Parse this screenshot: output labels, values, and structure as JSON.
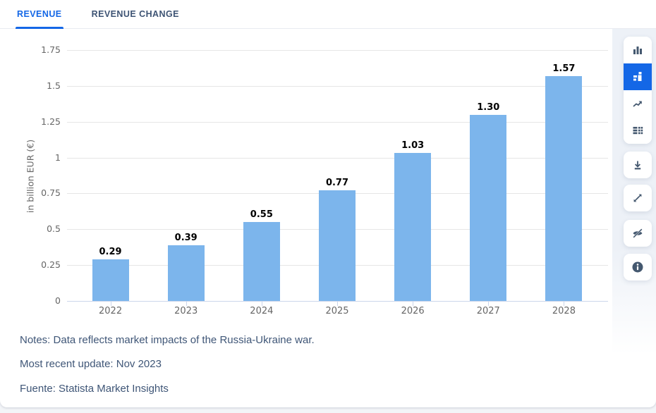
{
  "header": {
    "tabs": [
      {
        "label": "REVENUE",
        "active": true
      },
      {
        "label": "REVENUE CHANGE",
        "active": false
      }
    ]
  },
  "chart_data": {
    "type": "bar",
    "title": "",
    "categories": [
      "2022",
      "2023",
      "2024",
      "2025",
      "2026",
      "2027",
      "2028"
    ],
    "values": [
      0.29,
      0.39,
      0.55,
      0.77,
      1.03,
      1.3,
      1.57
    ],
    "data_labels": [
      "0.29",
      "0.39",
      "0.55",
      "0.77",
      "1.03",
      "1.30",
      "1.57"
    ],
    "xlabel": "",
    "ylabel": "in billion EUR (€)",
    "ylim": [
      0,
      1.75
    ],
    "yticks": [
      0,
      0.25,
      0.5,
      0.75,
      1,
      1.25,
      1.5,
      1.75
    ],
    "ytick_labels": [
      "0",
      "0.25",
      "0.5",
      "0.75",
      "1",
      "1.25",
      "1.5",
      "1.75"
    ],
    "grid": true,
    "legend": false,
    "bar_color": "#7cb5ec",
    "gridline_color": "#e6e6e6",
    "axis_line_color": "#ccd6eb",
    "axis_text_color": "#666666",
    "data_label_color": "#000000"
  },
  "notes": {
    "note": "Notes: Data reflects market impacts of the Russia-Ukraine war.",
    "update": "Most recent update: Nov 2023",
    "source": "Fuente: Statista Market Insights"
  },
  "toolbar": {
    "chart_type_buttons": [
      {
        "name": "column-chart",
        "active": false
      },
      {
        "name": "bar-values-chart",
        "active": true
      },
      {
        "name": "line-chart",
        "active": false
      },
      {
        "name": "table-view",
        "active": false
      }
    ],
    "action_buttons": [
      {
        "name": "download"
      },
      {
        "name": "fullscreen"
      },
      {
        "name": "hide-chart"
      },
      {
        "name": "info"
      }
    ]
  },
  "colors": {
    "accent_blue": "#1467e6",
    "slate_text": "#3e5474",
    "icon_slate": "#44586f",
    "notes_text": "#3f5677",
    "sidebar_bg": "#edf1f7"
  }
}
